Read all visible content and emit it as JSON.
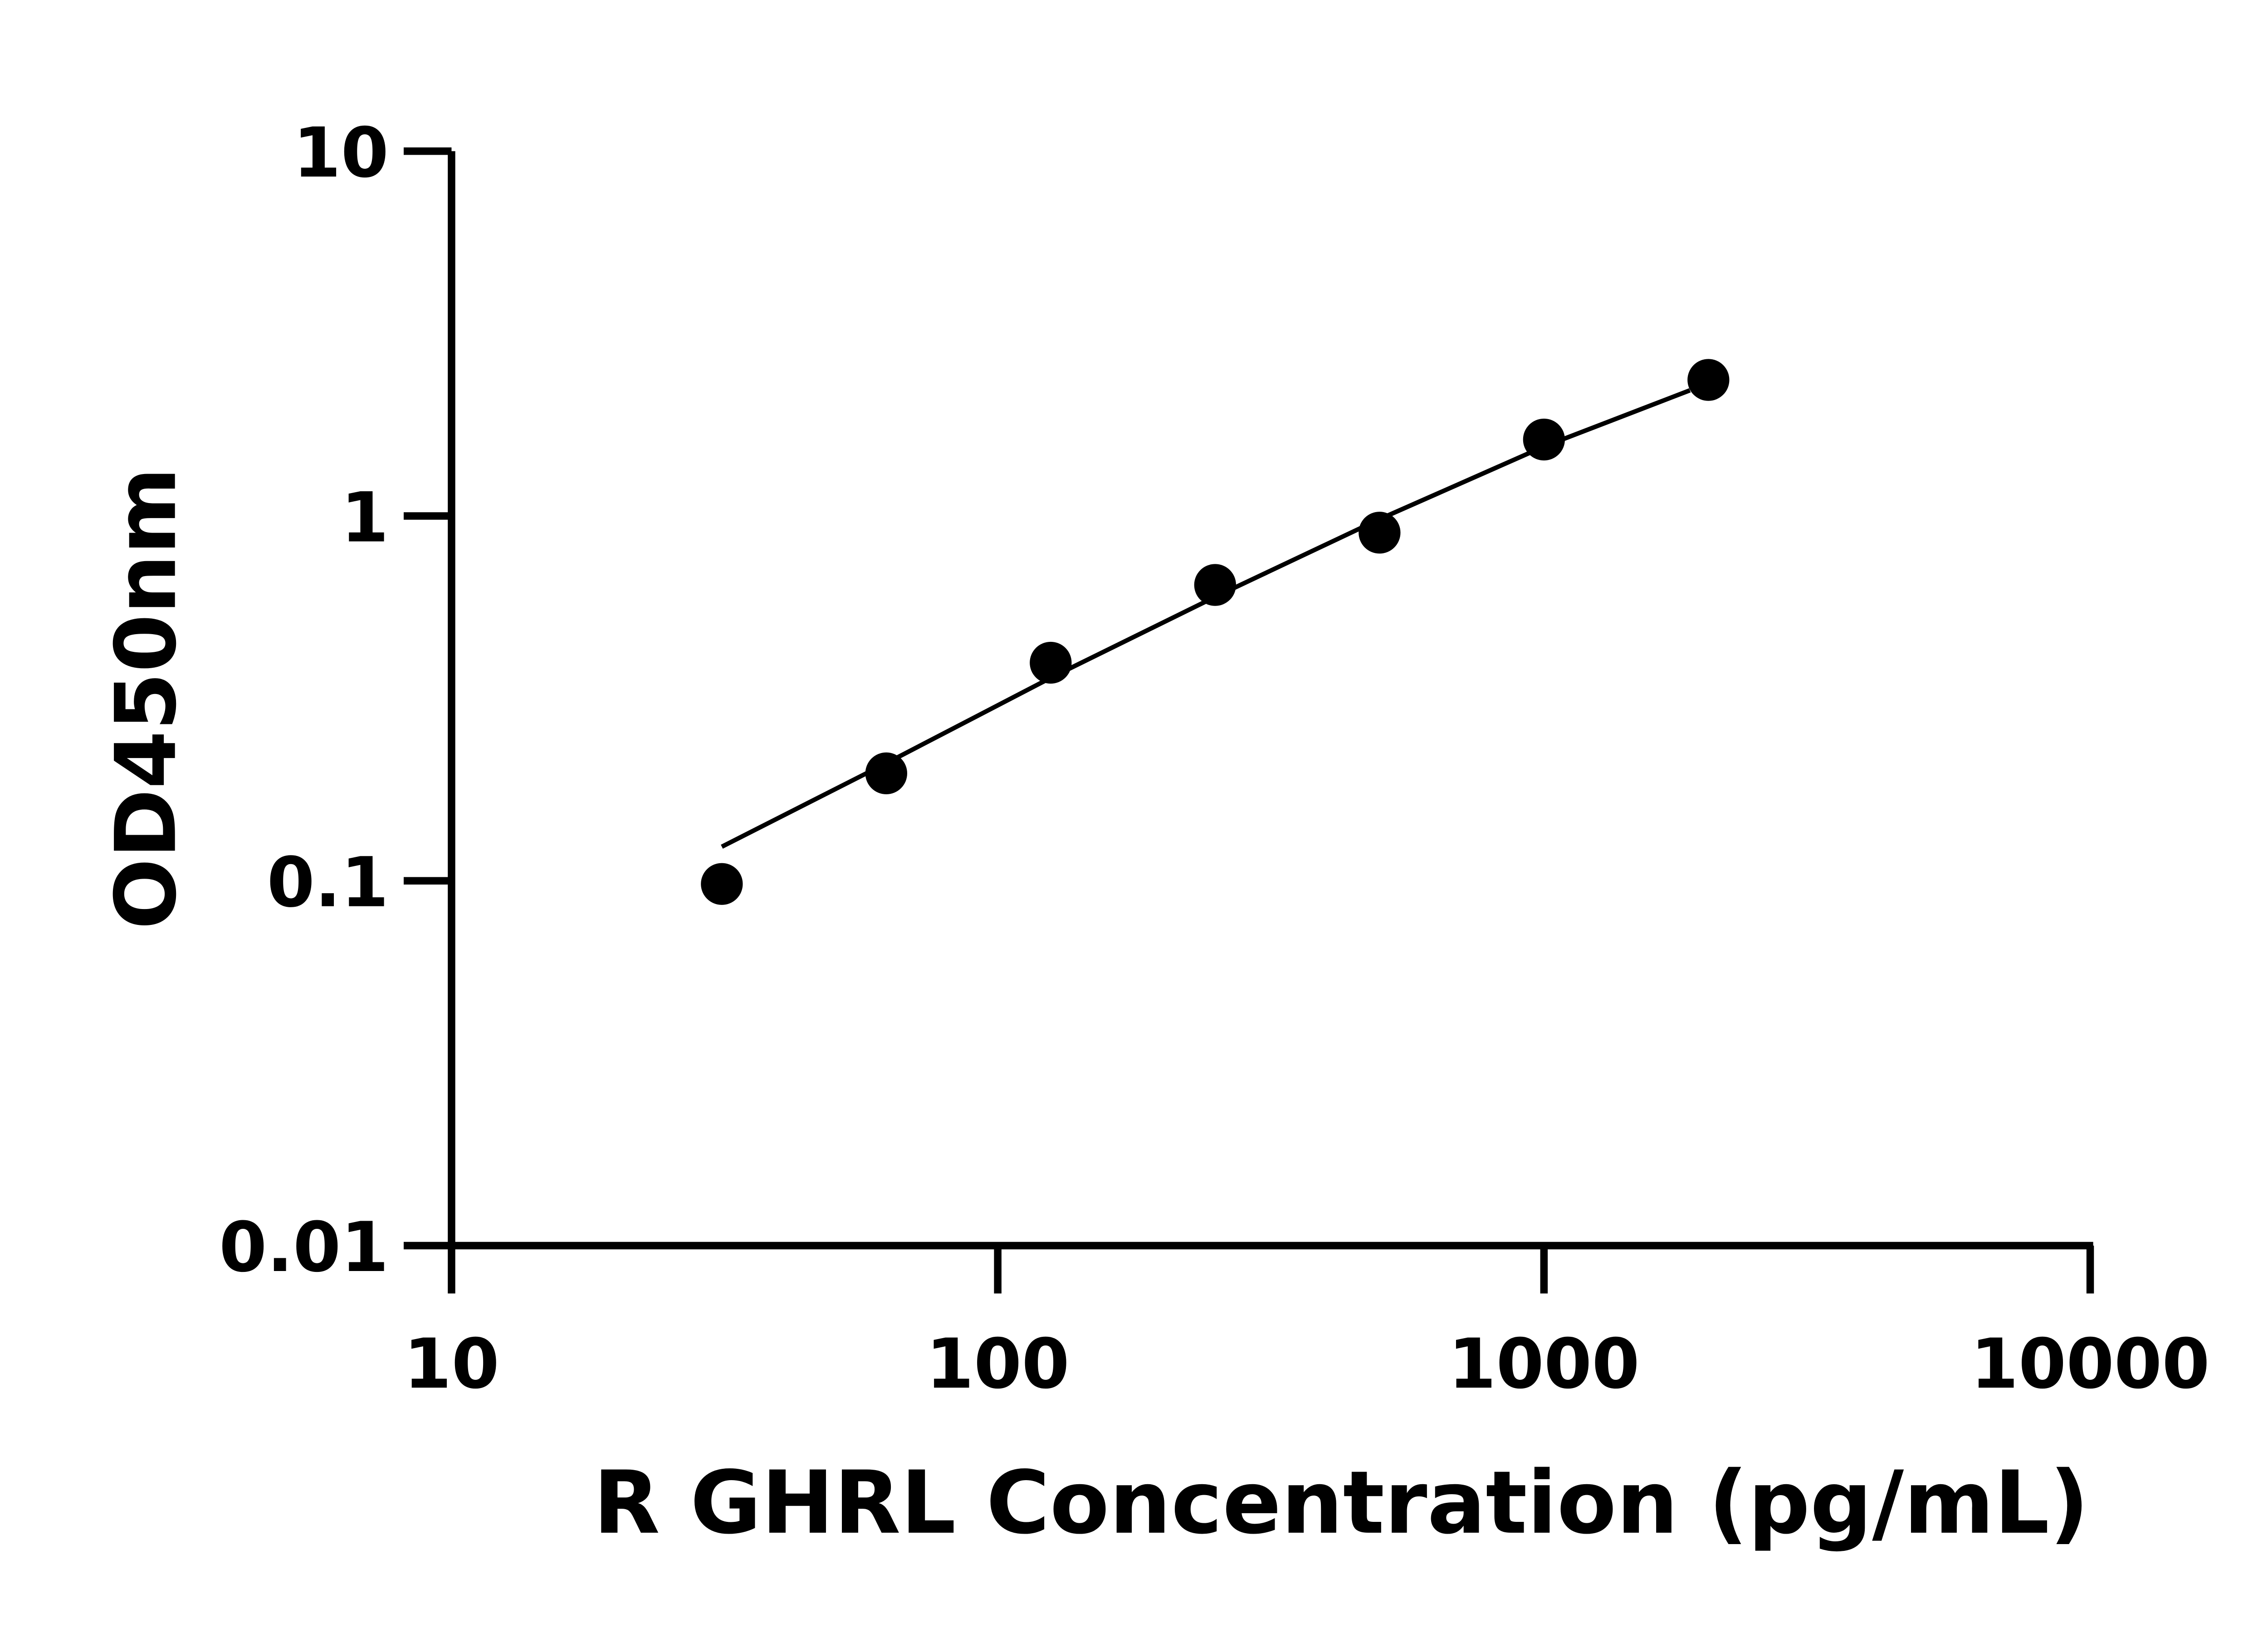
{
  "chart_data": {
    "type": "scatter",
    "title": "",
    "xlabel": "R GHRL Concentration (pg/mL)",
    "ylabel": "OD450nm",
    "x_scale": "log",
    "y_scale": "log",
    "xlim": [
      10,
      10000
    ],
    "ylim": [
      0.01,
      10
    ],
    "x_ticks": [
      "10",
      "100",
      "1000",
      "10000"
    ],
    "y_ticks": [
      "0.01",
      "0.1",
      "1",
      "10"
    ],
    "grid": false,
    "legend": "none",
    "colors": {
      "points": "#000000",
      "line": "#000000",
      "axes": "#000000"
    },
    "series": [
      {
        "type": "scatter",
        "x": [
          31.25,
          62.5,
          125,
          250,
          500,
          1000,
          2000
        ],
        "y": [
          0.098,
          0.197,
          0.396,
          0.647,
          0.9,
          1.62,
          2.36
        ]
      },
      {
        "type": "line",
        "x": [
          31.25,
          62.5,
          125,
          250,
          500,
          1000,
          1850
        ],
        "y": [
          0.124,
          0.21,
          0.36,
          0.6,
          0.98,
          1.55,
          2.21
        ]
      }
    ]
  }
}
